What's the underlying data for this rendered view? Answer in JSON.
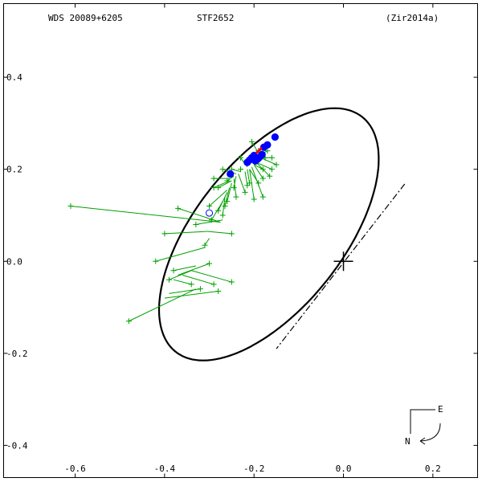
{
  "header": {
    "wds_id": "WDS 20089+6205",
    "discoverer": "STF2652",
    "reference": "(Zir2014a)"
  },
  "compass": {
    "east_label": "E",
    "north_label": "N"
  },
  "chart_data": {
    "type": "scatter",
    "title": "",
    "xlabel": "",
    "ylabel": "",
    "xlim": [
      -0.76,
      0.3
    ],
    "ylim": [
      -0.47,
      0.56
    ],
    "x_ticks": [
      {
        "value": -0.6,
        "label": "-0.6"
      },
      {
        "value": -0.4,
        "label": "-0.4"
      },
      {
        "value": -0.2,
        "label": "-0.2"
      },
      {
        "value": 0.0,
        "label": "0.0"
      },
      {
        "value": 0.2,
        "label": "0.2"
      }
    ],
    "y_ticks": [
      {
        "value": 0.4,
        "label": "0.4"
      },
      {
        "value": 0.2,
        "label": "0.2"
      },
      {
        "value": 0.0,
        "label": "0.0"
      },
      {
        "value": -0.2,
        "label": "-0.2"
      },
      {
        "value": -0.4,
        "label": "-0.4"
      }
    ],
    "grid": false,
    "orbit_ellipse": {
      "center": [
        -0.1667,
        0.0586
      ],
      "semi_major": 0.3296,
      "semi_minor": 0.1637,
      "rotation_deg": 50.2,
      "color": "#000000"
    },
    "line_of_nodes": {
      "from": [
        0.137,
        0.168
      ],
      "to": [
        -0.15,
        -0.19
      ]
    },
    "primary_star": [
      0.0,
      0.0
    ],
    "micrometer_points": [
      {
        "obs": [
          -0.61,
          0.12
        ],
        "orbit": [
          -0.275,
          0.085
        ]
      },
      {
        "obs": [
          -0.37,
          0.115
        ],
        "orbit": [
          -0.275,
          0.085
        ]
      },
      {
        "obs": [
          -0.4,
          0.06
        ],
        "orbit": [
          -0.305,
          0.065
        ]
      },
      {
        "obs": [
          -0.25,
          0.06
        ],
        "orbit": [
          -0.305,
          0.065
        ]
      },
      {
        "obs": [
          -0.33,
          0.08
        ],
        "orbit": [
          -0.27,
          0.09
        ]
      },
      {
        "obs": [
          -0.42,
          0.0
        ],
        "orbit": [
          -0.31,
          0.03
        ]
      },
      {
        "obs": [
          -0.31,
          0.035
        ],
        "orbit": [
          -0.3,
          0.05
        ]
      },
      {
        "obs": [
          -0.38,
          -0.02
        ],
        "orbit": [
          -0.33,
          -0.01
        ]
      },
      {
        "obs": [
          -0.39,
          -0.04
        ],
        "orbit": [
          -0.34,
          -0.02
        ]
      },
      {
        "obs": [
          -0.3,
          -0.005
        ],
        "orbit": [
          -0.37,
          -0.03
        ]
      },
      {
        "obs": [
          -0.34,
          -0.05
        ],
        "orbit": [
          -0.38,
          -0.04
        ]
      },
      {
        "obs": [
          -0.29,
          -0.05
        ],
        "orbit": [
          -0.36,
          -0.03
        ]
      },
      {
        "obs": [
          -0.25,
          -0.045
        ],
        "orbit": [
          -0.34,
          -0.02
        ]
      },
      {
        "obs": [
          -0.28,
          -0.065
        ],
        "orbit": [
          -0.4,
          -0.08
        ]
      },
      {
        "obs": [
          -0.32,
          -0.06
        ],
        "orbit": [
          -0.39,
          -0.07
        ]
      },
      {
        "obs": [
          -0.48,
          -0.13
        ],
        "orbit": [
          -0.33,
          -0.06
        ]
      },
      {
        "obs": [
          -0.295,
          0.09
        ],
        "orbit": [
          -0.27,
          0.13
        ]
      },
      {
        "obs": [
          -0.27,
          0.1
        ],
        "orbit": [
          -0.265,
          0.14
        ]
      },
      {
        "obs": [
          -0.28,
          0.11
        ],
        "orbit": [
          -0.26,
          0.15
        ]
      },
      {
        "obs": [
          -0.265,
          0.12
        ],
        "orbit": [
          -0.255,
          0.16
        ]
      },
      {
        "obs": [
          -0.3,
          0.12
        ],
        "orbit": [
          -0.26,
          0.155
        ]
      },
      {
        "obs": [
          -0.29,
          0.16
        ],
        "orbit": [
          -0.255,
          0.175
        ]
      },
      {
        "obs": [
          -0.26,
          0.13
        ],
        "orbit": [
          -0.25,
          0.17
        ]
      },
      {
        "obs": [
          -0.24,
          0.14
        ],
        "orbit": [
          -0.245,
          0.18
        ]
      },
      {
        "obs": [
          -0.245,
          0.16
        ],
        "orbit": [
          -0.24,
          0.185
        ]
      },
      {
        "obs": [
          -0.26,
          0.175
        ],
        "orbit": [
          -0.245,
          0.185
        ]
      },
      {
        "obs": [
          -0.27,
          0.2
        ],
        "orbit": [
          -0.24,
          0.19
        ]
      },
      {
        "obs": [
          -0.23,
          0.2
        ],
        "orbit": [
          -0.225,
          0.2
        ]
      },
      {
        "obs": [
          -0.215,
          0.165
        ],
        "orbit": [
          -0.22,
          0.195
        ]
      },
      {
        "obs": [
          -0.19,
          0.17
        ],
        "orbit": [
          -0.21,
          0.2
        ]
      },
      {
        "obs": [
          -0.2,
          0.135
        ],
        "orbit": [
          -0.21,
          0.2
        ]
      },
      {
        "obs": [
          -0.18,
          0.14
        ],
        "orbit": [
          -0.205,
          0.205
        ]
      },
      {
        "obs": [
          -0.21,
          0.17
        ],
        "orbit": [
          -0.215,
          0.2
        ]
      },
      {
        "obs": [
          -0.18,
          0.2
        ],
        "orbit": [
          -0.2,
          0.21
        ]
      },
      {
        "obs": [
          -0.165,
          0.185
        ],
        "orbit": [
          -0.195,
          0.215
        ]
      },
      {
        "obs": [
          -0.16,
          0.2
        ],
        "orbit": [
          -0.195,
          0.215
        ]
      },
      {
        "obs": [
          -0.175,
          0.225
        ],
        "orbit": [
          -0.195,
          0.22
        ]
      },
      {
        "obs": [
          -0.16,
          0.225
        ],
        "orbit": [
          -0.19,
          0.225
        ]
      },
      {
        "obs": [
          -0.15,
          0.21
        ],
        "orbit": [
          -0.185,
          0.225
        ]
      },
      {
        "obs": [
          -0.18,
          0.18
        ],
        "orbit": [
          -0.2,
          0.21
        ]
      },
      {
        "obs": [
          -0.19,
          0.24
        ],
        "orbit": [
          -0.185,
          0.23
        ]
      },
      {
        "obs": [
          -0.205,
          0.26
        ],
        "orbit": [
          -0.19,
          0.235
        ]
      },
      {
        "obs": [
          -0.17,
          0.24
        ],
        "orbit": [
          -0.18,
          0.235
        ]
      },
      {
        "obs": [
          -0.23,
          0.225
        ],
        "orbit": [
          -0.215,
          0.205
        ]
      },
      {
        "obs": [
          -0.25,
          0.2
        ],
        "orbit": [
          -0.23,
          0.195
        ]
      },
      {
        "obs": [
          -0.28,
          0.16
        ],
        "orbit": [
          -0.25,
          0.175
        ]
      },
      {
        "obs": [
          -0.29,
          0.18
        ],
        "orbit": [
          -0.255,
          0.18
        ]
      },
      {
        "obs": [
          -0.22,
          0.15
        ],
        "orbit": [
          -0.235,
          0.19
        ]
      }
    ],
    "speckle_points": [
      {
        "obs": [
          -0.253,
          0.19
        ],
        "orbit": [
          -0.25,
          0.19
        ]
      },
      {
        "obs": [
          -0.215,
          0.215
        ],
        "orbit": [
          -0.213,
          0.213
        ]
      },
      {
        "obs": [
          -0.21,
          0.22
        ],
        "orbit": [
          -0.207,
          0.22
        ]
      },
      {
        "obs": [
          -0.205,
          0.225
        ],
        "orbit": [
          -0.203,
          0.223
        ]
      },
      {
        "obs": [
          -0.2,
          0.23
        ],
        "orbit": [
          -0.2,
          0.228
        ]
      },
      {
        "obs": [
          -0.197,
          0.218
        ],
        "orbit": [
          -0.2,
          0.22
        ]
      },
      {
        "obs": [
          -0.192,
          0.222
        ],
        "orbit": [
          -0.195,
          0.224
        ]
      },
      {
        "obs": [
          -0.188,
          0.226
        ],
        "orbit": [
          -0.19,
          0.228
        ]
      },
      {
        "obs": [
          -0.182,
          0.232
        ],
        "orbit": [
          -0.184,
          0.233
        ]
      },
      {
        "obs": [
          -0.178,
          0.248
        ],
        "orbit": [
          -0.177,
          0.246
        ]
      },
      {
        "obs": [
          -0.17,
          0.253
        ],
        "orbit": [
          -0.17,
          0.25
        ]
      },
      {
        "obs": [
          -0.153,
          0.27
        ],
        "orbit": [
          -0.155,
          0.268
        ]
      }
    ],
    "rejected_points": [
      {
        "obs": [
          -0.3,
          0.105
        ]
      }
    ],
    "current_position": [
      -0.188,
      0.24
    ],
    "colors": {
      "micrometer": "#00a000",
      "speckle": "#0000ff",
      "rejected": "#0000ff",
      "current": "#ff0000",
      "orbit": "#000000"
    }
  }
}
